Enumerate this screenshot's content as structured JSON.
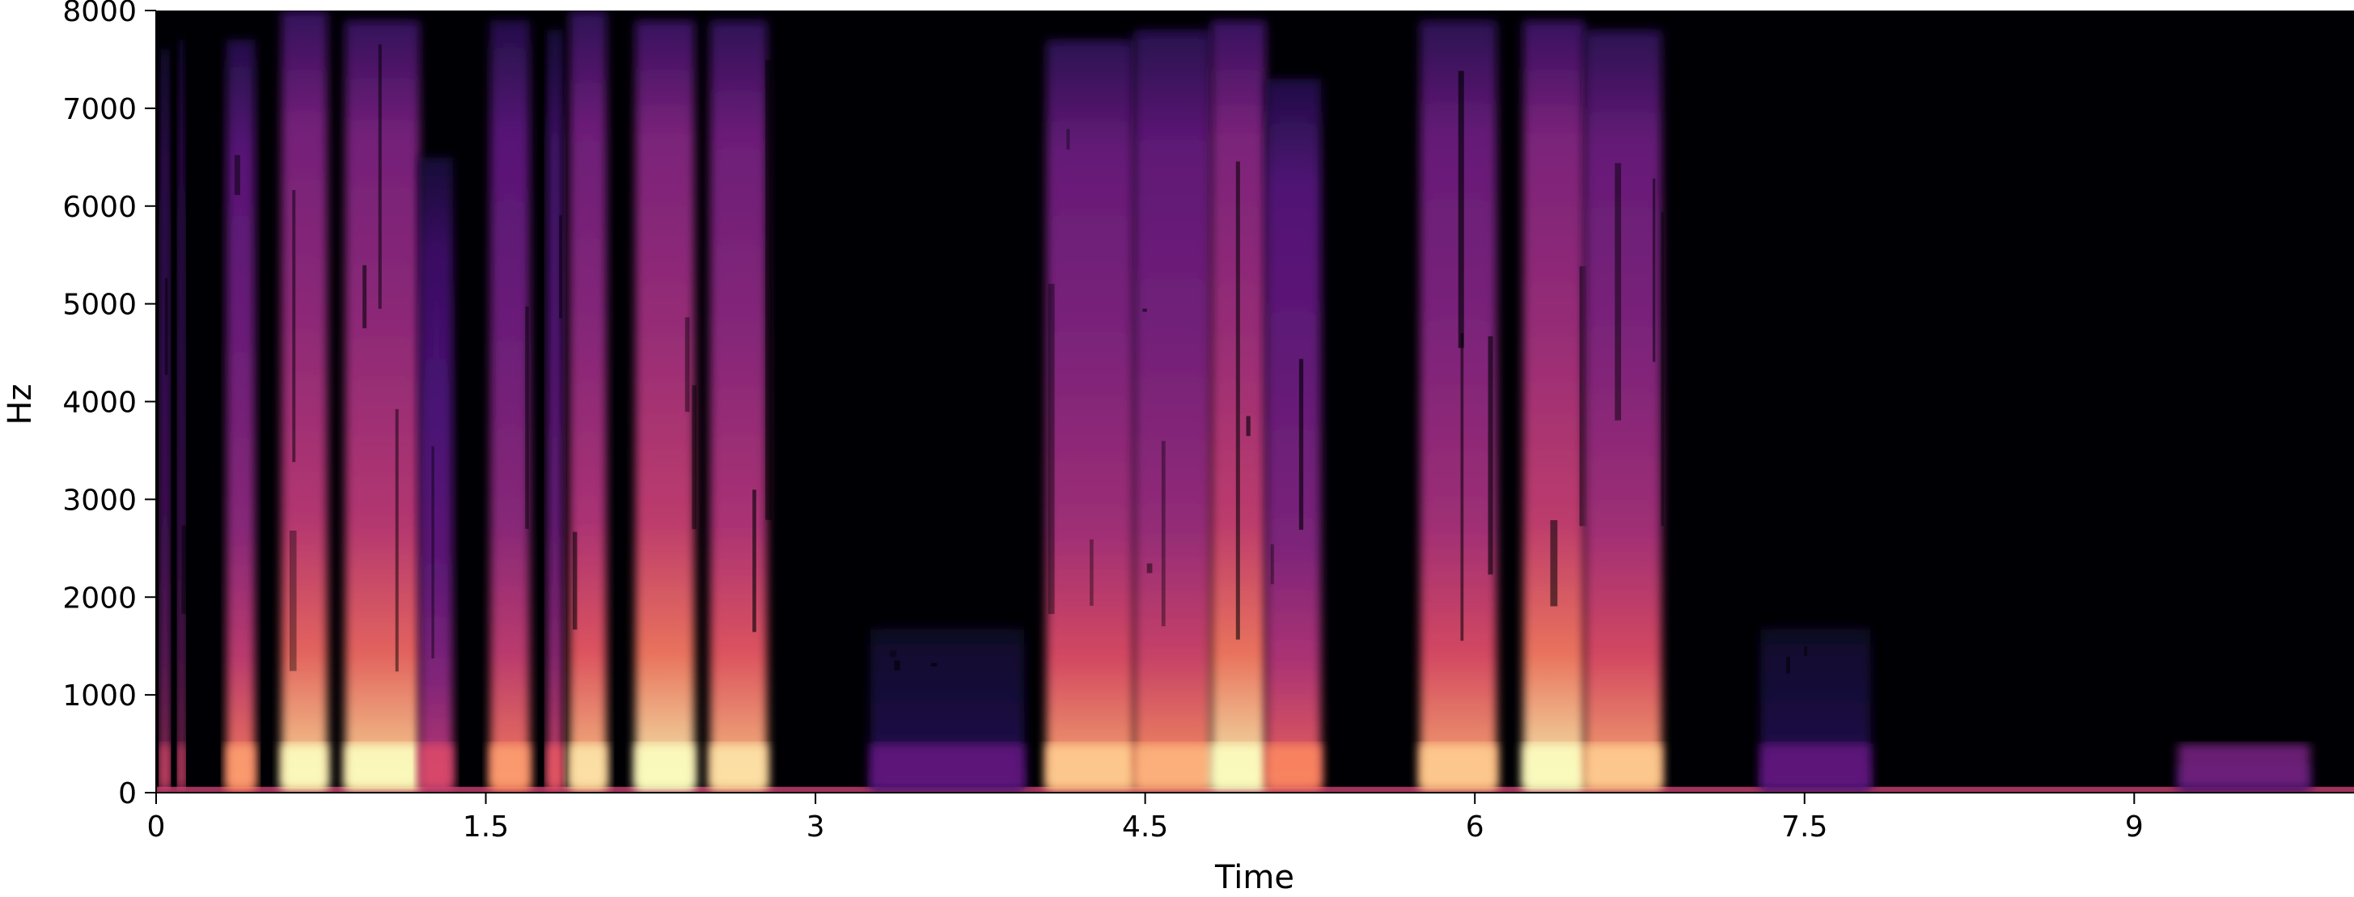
{
  "chart_data": {
    "type": "heatmap",
    "subtype": "spectrogram",
    "title": "",
    "xlabel": "Time",
    "ylabel": "Hz",
    "xlim": [
      0,
      10.0
    ],
    "ylim": [
      0,
      8000
    ],
    "x_ticks": [
      0,
      1.5,
      3,
      4.5,
      6,
      7.5,
      9
    ],
    "x_tick_labels": [
      "0",
      "1.5",
      "3",
      "4.5",
      "6",
      "7.5",
      "9"
    ],
    "y_ticks": [
      0,
      1000,
      2000,
      3000,
      4000,
      5000,
      6000,
      7000,
      8000
    ],
    "y_tick_labels": [
      "0",
      "1000",
      "2000",
      "3000",
      "4000",
      "5000",
      "6000",
      "7000",
      "8000"
    ],
    "colormap": "magma",
    "grid": false,
    "legend": "none",
    "segments": [
      {
        "start": 0.02,
        "end": 0.06,
        "intensity": 0.55,
        "top_hz": 7600
      },
      {
        "start": 0.1,
        "end": 0.13,
        "intensity": 0.55,
        "top_hz": 7700
      },
      {
        "start": 0.32,
        "end": 0.45,
        "intensity": 0.75,
        "top_hz": 7700
      },
      {
        "start": 0.57,
        "end": 0.78,
        "intensity": 0.95,
        "top_hz": 8000
      },
      {
        "start": 0.86,
        "end": 1.2,
        "intensity": 0.95,
        "top_hz": 7900
      },
      {
        "start": 1.2,
        "end": 1.35,
        "intensity": 0.55,
        "top_hz": 6500
      },
      {
        "start": 1.52,
        "end": 1.7,
        "intensity": 0.75,
        "top_hz": 7900
      },
      {
        "start": 1.78,
        "end": 1.85,
        "intensity": 0.6,
        "top_hz": 7800
      },
      {
        "start": 1.88,
        "end": 2.05,
        "intensity": 0.9,
        "top_hz": 8000
      },
      {
        "start": 2.18,
        "end": 2.45,
        "intensity": 1.0,
        "top_hz": 7900
      },
      {
        "start": 2.52,
        "end": 2.78,
        "intensity": 0.9,
        "top_hz": 7900
      },
      {
        "start": 3.25,
        "end": 3.95,
        "intensity": 0.25,
        "top_hz": 1700
      },
      {
        "start": 4.05,
        "end": 4.45,
        "intensity": 0.85,
        "top_hz": 7700
      },
      {
        "start": 4.45,
        "end": 4.8,
        "intensity": 0.8,
        "top_hz": 7800
      },
      {
        "start": 4.8,
        "end": 5.05,
        "intensity": 1.0,
        "top_hz": 7900
      },
      {
        "start": 5.05,
        "end": 5.3,
        "intensity": 0.7,
        "top_hz": 7300
      },
      {
        "start": 5.75,
        "end": 6.1,
        "intensity": 0.85,
        "top_hz": 7900
      },
      {
        "start": 6.22,
        "end": 6.5,
        "intensity": 1.0,
        "top_hz": 7900
      },
      {
        "start": 6.5,
        "end": 6.85,
        "intensity": 0.85,
        "top_hz": 7800
      },
      {
        "start": 7.3,
        "end": 7.8,
        "intensity": 0.25,
        "top_hz": 1700
      },
      {
        "start": 9.2,
        "end": 9.8,
        "intensity": 0.3,
        "top_hz": 300
      }
    ]
  }
}
